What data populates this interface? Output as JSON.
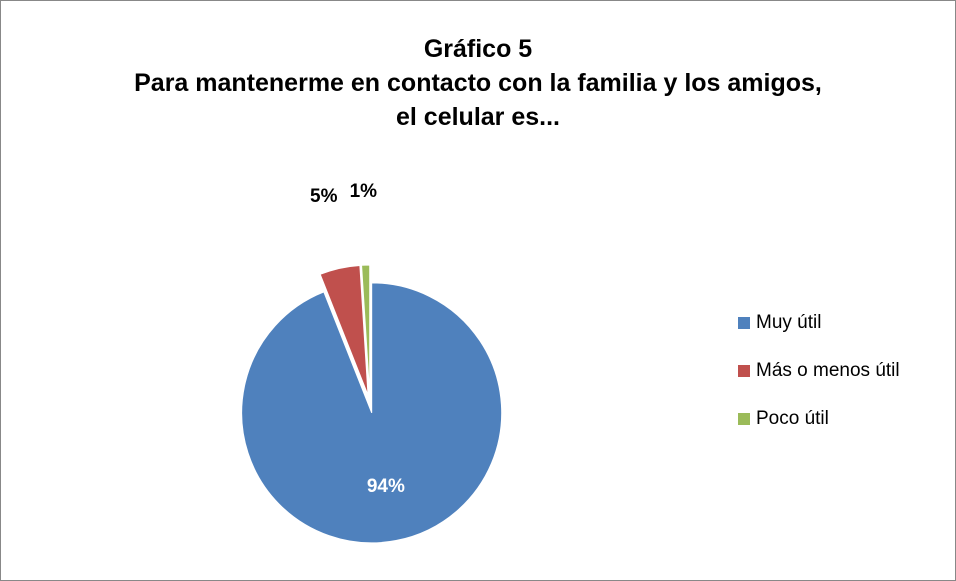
{
  "chart_data": {
    "type": "pie",
    "title": "Gráfico 5",
    "subtitle": "Para mantenerme en contacto con la familia y los amigos, el celular es...",
    "categories": [
      "Muy útil",
      "Más o menos útil",
      "Poco útil"
    ],
    "values": [
      94,
      5,
      1
    ],
    "value_labels": [
      "94%",
      "5%",
      "1%"
    ],
    "colors": [
      "#4f81bd",
      "#c0504d",
      "#9bbb59"
    ],
    "legend": "right"
  }
}
